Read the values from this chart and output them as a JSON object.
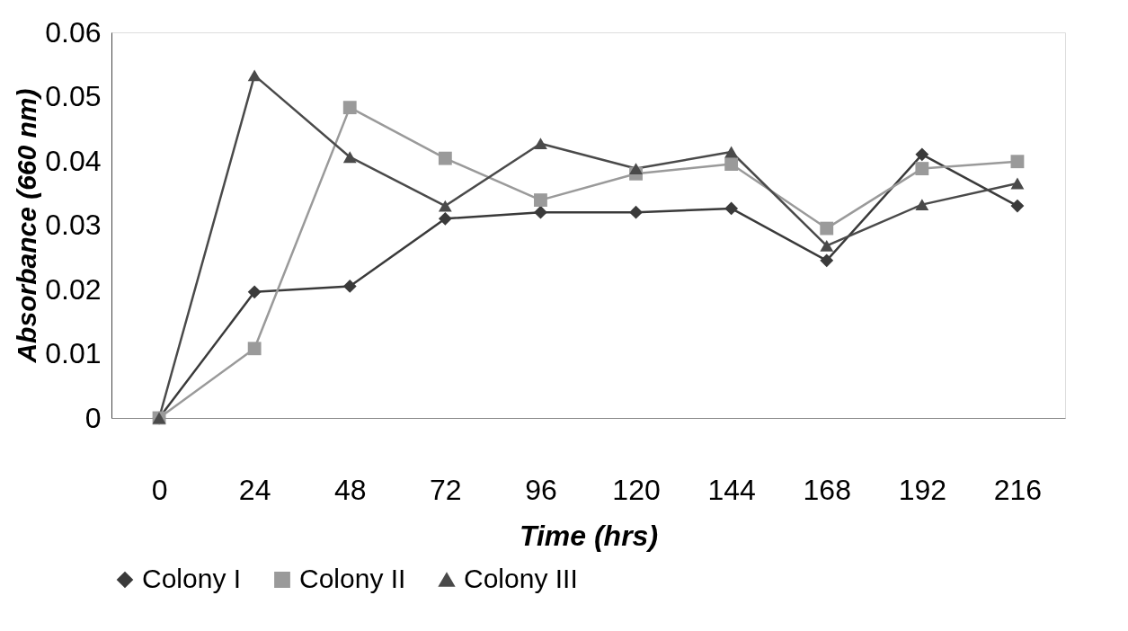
{
  "chart_data": {
    "type": "line",
    "xlabel": "Time (hrs)",
    "ylabel": "Absorbance (660 nm)",
    "categories": [
      "0",
      "24",
      "48",
      "72",
      "96",
      "120",
      "144",
      "168",
      "192",
      "216"
    ],
    "ylim": [
      0,
      0.06
    ],
    "yticks": [
      0,
      0.01,
      0.02,
      0.03,
      0.04,
      0.05,
      0.06
    ],
    "grid": false,
    "legend": "bottom",
    "line_style": "solid",
    "series": [
      {
        "name": "Colony I",
        "color": "#3a3a3a",
        "marker": "diamond",
        "values": [
          0,
          0.0196,
          0.0205,
          0.031,
          0.032,
          0.032,
          0.0326,
          0.0245,
          0.041,
          0.033
        ]
      },
      {
        "name": "Colony II",
        "color": "#9a9a9a",
        "marker": "square",
        "values": [
          0,
          0.0108,
          0.0483,
          0.0404,
          0.0339,
          0.038,
          0.0395,
          0.0295,
          0.0388,
          0.0399
        ]
      },
      {
        "name": "Colony III",
        "color": "#4a4a4a",
        "marker": "triangle",
        "values": [
          0,
          0.0533,
          0.0406,
          0.033,
          0.0427,
          0.0388,
          0.0414,
          0.0268,
          0.0332,
          0.0365
        ]
      }
    ]
  }
}
